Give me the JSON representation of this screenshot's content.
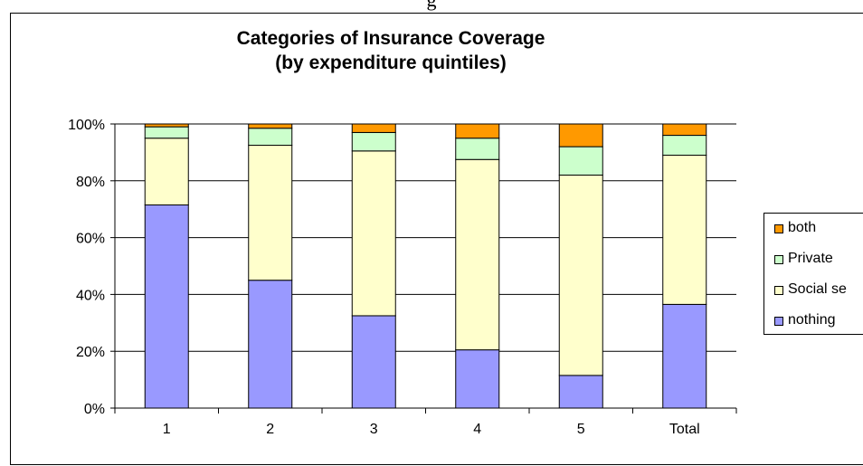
{
  "top_fragment": "g",
  "chart_data": {
    "type": "bar",
    "stacked": true,
    "percent": true,
    "title": [
      "Categories of Insurance Coverage",
      "(by expenditure quintiles)"
    ],
    "categories": [
      "1",
      "2",
      "3",
      "4",
      "5",
      "Total"
    ],
    "y_ticks": [
      "0%",
      "20%",
      "40%",
      "60%",
      "80%",
      "100%"
    ],
    "ylim": [
      0,
      100
    ],
    "grid": true,
    "legend_position": "right",
    "series": [
      {
        "name": "nothing",
        "color": "#9999ff",
        "values": [
          71.5,
          45,
          32.5,
          20.5,
          11.5,
          36.5
        ]
      },
      {
        "name": "Social se",
        "color": "#ffffcc",
        "values": [
          23.5,
          47.5,
          58,
          67,
          70.5,
          52.5
        ]
      },
      {
        "name": "Private",
        "color": "#ccffcc",
        "values": [
          4,
          6,
          6.5,
          7.5,
          10,
          7
        ]
      },
      {
        "name": "both",
        "color": "#ff9900",
        "values": [
          1,
          1.5,
          3,
          5,
          8,
          4
        ]
      }
    ]
  }
}
